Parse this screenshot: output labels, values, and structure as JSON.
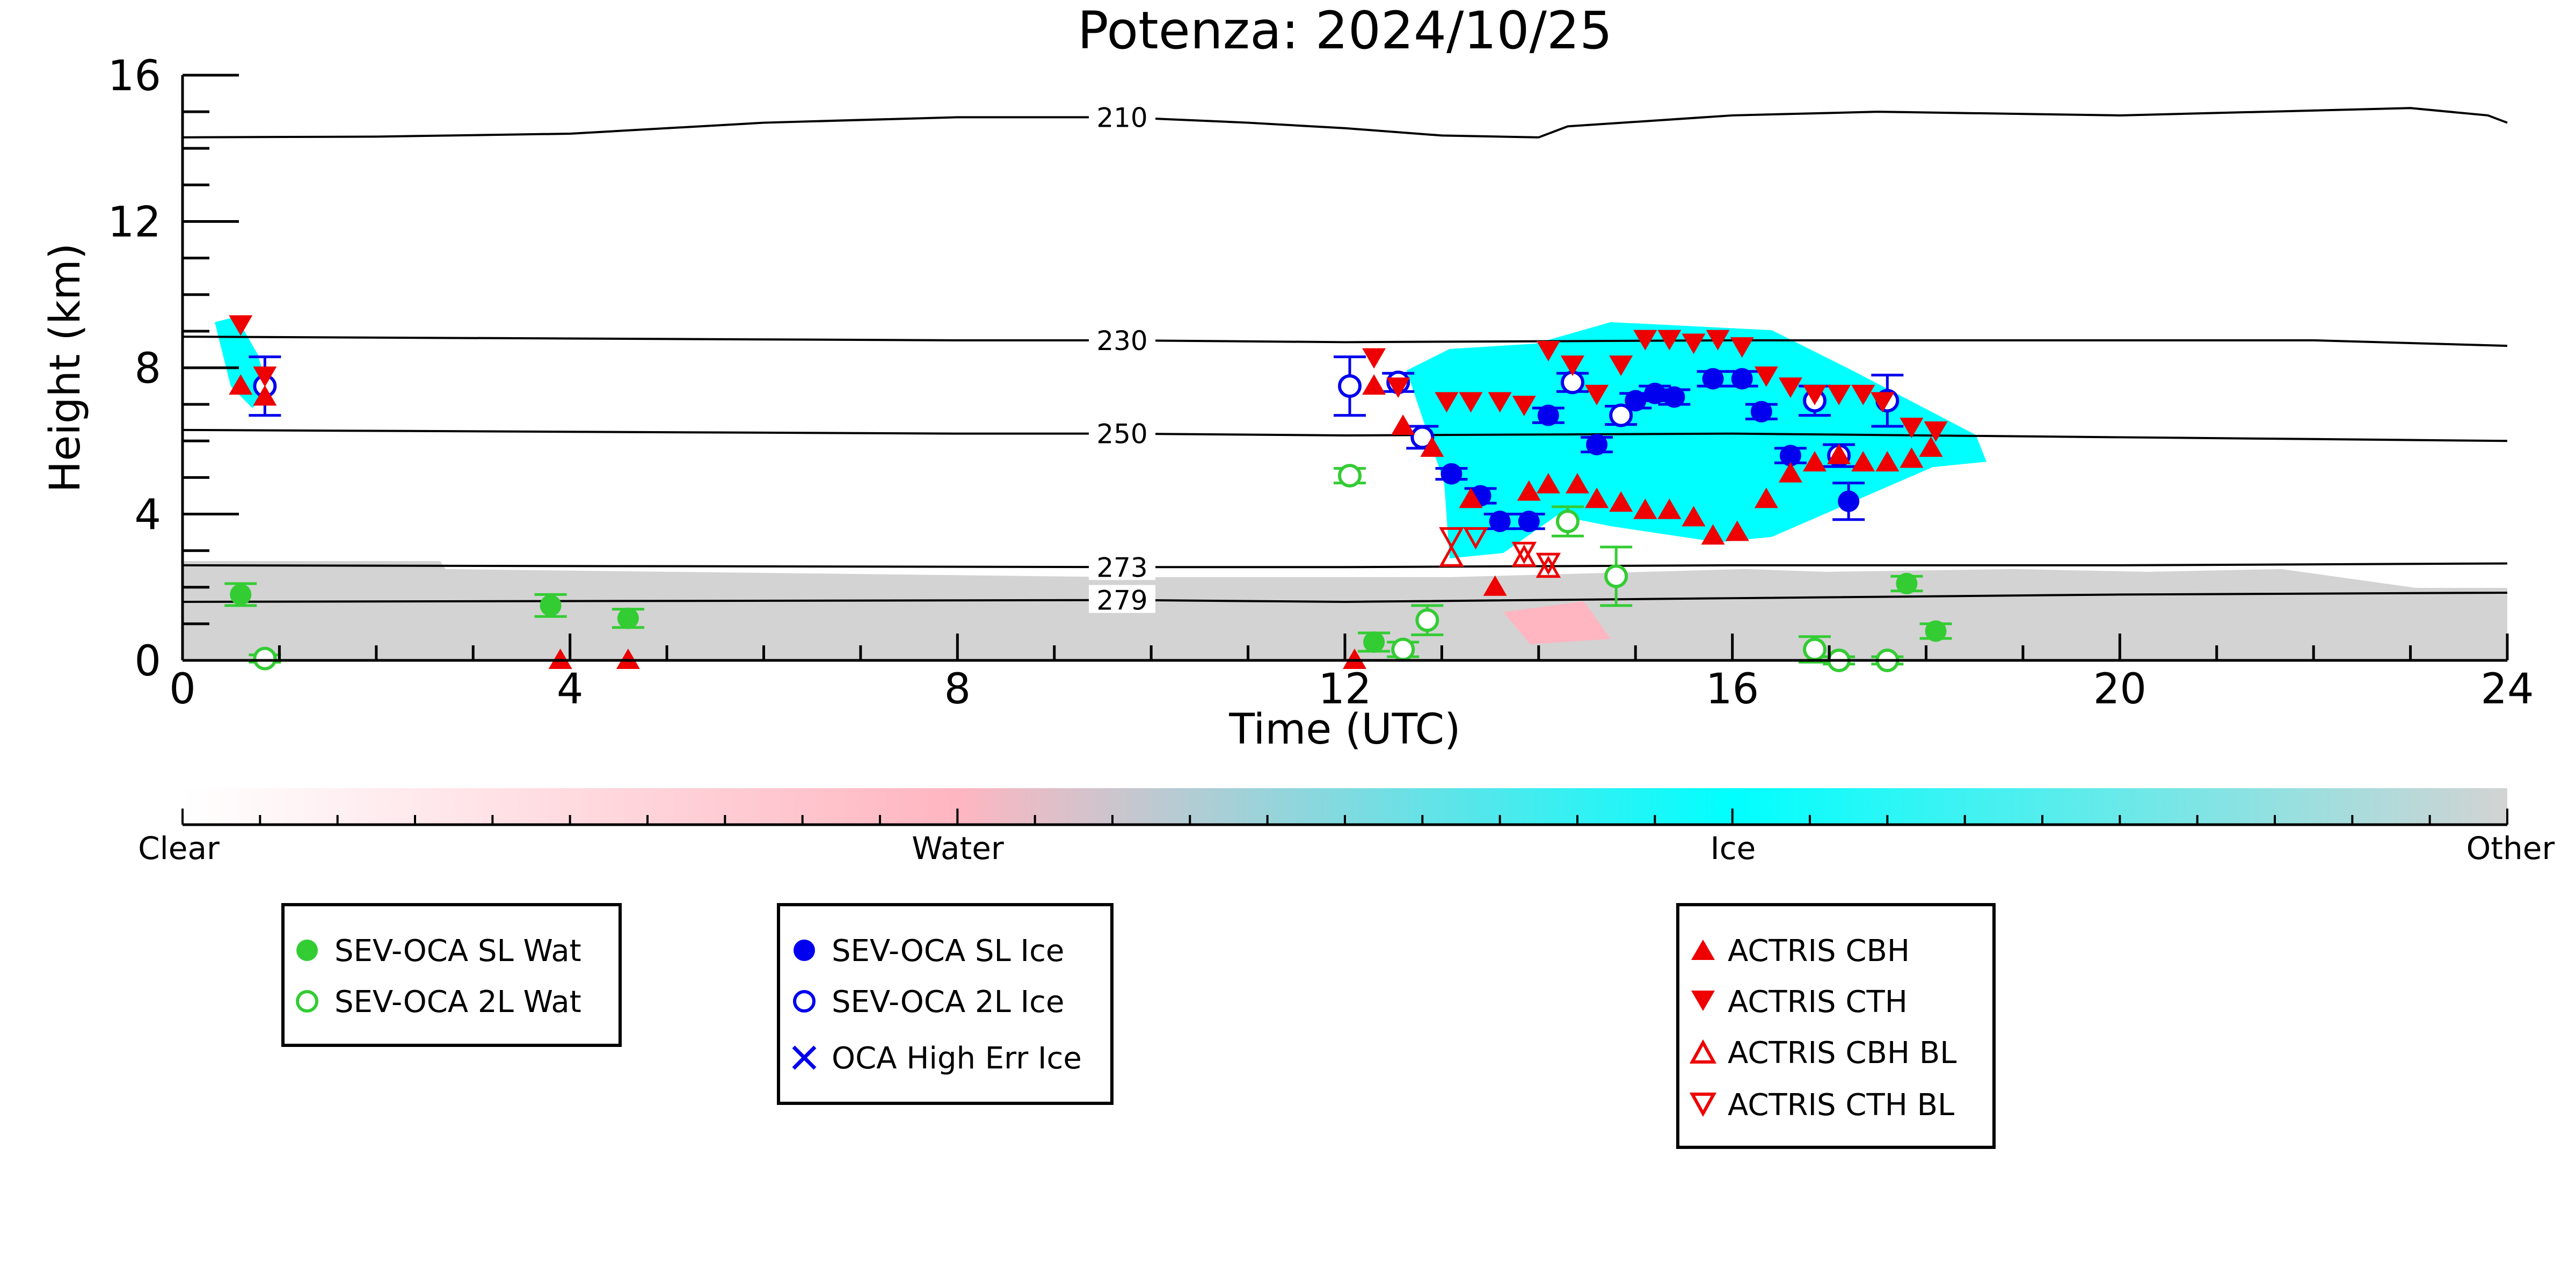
{
  "chart_data": {
    "type": "scatter",
    "title": "Potenza: 2024/10/25",
    "xlabel": "Time (UTC)",
    "ylabel": "Height (km)",
    "xlim": [
      0,
      24
    ],
    "ylim": [
      0,
      16
    ],
    "x_ticks": [
      0,
      4,
      8,
      12,
      16,
      20,
      24
    ],
    "y_ticks": [
      0,
      4,
      8,
      12,
      16
    ],
    "x_tick_labels": [
      "0",
      "4",
      "8",
      "12",
      "16",
      "20",
      "24"
    ],
    "y_tick_labels": [
      "0",
      "4",
      "8",
      "12",
      "16"
    ],
    "colorbar": {
      "labels": [
        "Clear",
        "Water",
        "Ice",
        "Other"
      ],
      "colors": [
        "#ffffff",
        "#ffb6c1",
        "#00ffff",
        "#d3d3d3"
      ]
    },
    "isotherms": [
      {
        "label": "210",
        "label_x": 9.7,
        "points": [
          [
            0,
            14.3
          ],
          [
            2,
            14.32
          ],
          [
            4,
            14.4
          ],
          [
            6,
            14.7
          ],
          [
            8,
            14.85
          ],
          [
            9.7,
            14.85
          ],
          [
            11,
            14.7
          ],
          [
            12,
            14.55
          ],
          [
            13,
            14.35
          ],
          [
            14,
            14.3
          ],
          [
            14.3,
            14.6
          ],
          [
            16,
            14.9
          ],
          [
            17.5,
            15.0
          ],
          [
            20,
            14.9
          ],
          [
            23,
            15.1
          ],
          [
            23.8,
            14.9
          ],
          [
            24,
            14.7
          ]
        ]
      },
      {
        "label": "230",
        "label_x": 9.7,
        "points": [
          [
            0,
            8.85
          ],
          [
            4,
            8.8
          ],
          [
            8,
            8.75
          ],
          [
            9.7,
            8.75
          ],
          [
            12,
            8.7
          ],
          [
            16,
            8.75
          ],
          [
            20,
            8.75
          ],
          [
            22,
            8.75
          ],
          [
            24,
            8.6
          ]
        ]
      },
      {
        "label": "250",
        "label_x": 9.7,
        "points": [
          [
            0,
            6.3
          ],
          [
            4,
            6.25
          ],
          [
            8,
            6.2
          ],
          [
            9.7,
            6.2
          ],
          [
            12,
            6.15
          ],
          [
            16,
            6.2
          ],
          [
            20,
            6.1
          ],
          [
            24,
            6.0
          ]
        ]
      },
      {
        "label": "273",
        "label_x": 9.7,
        "points": [
          [
            0,
            2.6
          ],
          [
            9.7,
            2.55
          ],
          [
            12,
            2.55
          ],
          [
            16,
            2.6
          ],
          [
            20,
            2.6
          ],
          [
            24,
            2.65
          ]
        ]
      },
      {
        "label": "279",
        "label_x": 9.7,
        "points": [
          [
            0,
            1.6
          ],
          [
            9.7,
            1.65
          ],
          [
            12,
            1.6
          ],
          [
            16,
            1.7
          ],
          [
            20,
            1.8
          ],
          [
            24,
            1.85
          ]
        ]
      }
    ],
    "series": [
      {
        "name": "SEV-OCA SL Wat",
        "marker": "filled-circle",
        "color": "#33cc33",
        "points": [
          {
            "x": 0.6,
            "y": 1.8,
            "err": 0.3
          },
          {
            "x": 3.8,
            "y": 1.5,
            "err": 0.3
          },
          {
            "x": 4.6,
            "y": 1.15,
            "err": 0.25
          },
          {
            "x": 12.3,
            "y": 0.5,
            "err": 0.25
          },
          {
            "x": 17.8,
            "y": 2.1,
            "err": 0.2
          },
          {
            "x": 18.1,
            "y": 0.8,
            "err": 0.2
          }
        ]
      },
      {
        "name": "SEV-OCA 2L Wat",
        "marker": "open-circle",
        "color": "#33cc33",
        "points": [
          {
            "x": 0.85,
            "y": 0.05,
            "err": 0.1
          },
          {
            "x": 12.05,
            "y": 5.05,
            "err": 0.2
          },
          {
            "x": 12.6,
            "y": 0.3,
            "err": 0.2
          },
          {
            "x": 12.85,
            "y": 1.1,
            "err": 0.4
          },
          {
            "x": 14.3,
            "y": 3.8,
            "err": 0.4
          },
          {
            "x": 14.8,
            "y": 2.3,
            "err": 0.8
          },
          {
            "x": 16.85,
            "y": 0.3,
            "err": 0.35
          },
          {
            "x": 17.1,
            "y": 0.0,
            "err": 0.1
          },
          {
            "x": 17.6,
            "y": 0.0,
            "err": 0.1
          }
        ]
      },
      {
        "name": "SEV-OCA SL Ice",
        "marker": "filled-circle",
        "color": "#0000ee",
        "points": [
          {
            "x": 13.1,
            "y": 5.1,
            "err": 0.15
          },
          {
            "x": 13.4,
            "y": 4.5,
            "err": 0.2
          },
          {
            "x": 13.6,
            "y": 3.8,
            "err": 0.2
          },
          {
            "x": 13.9,
            "y": 3.8,
            "err": 0.2
          },
          {
            "x": 14.1,
            "y": 6.7,
            "err": 0.2
          },
          {
            "x": 14.6,
            "y": 5.9,
            "err": 0.2
          },
          {
            "x": 15.0,
            "y": 7.1,
            "err": 0.2
          },
          {
            "x": 15.2,
            "y": 7.3,
            "err": 0.2
          },
          {
            "x": 15.4,
            "y": 7.2,
            "err": 0.2
          },
          {
            "x": 15.8,
            "y": 7.7,
            "err": 0.2
          },
          {
            "x": 16.1,
            "y": 7.7,
            "err": 0.2
          },
          {
            "x": 16.3,
            "y": 6.8,
            "err": 0.2
          },
          {
            "x": 16.6,
            "y": 5.6,
            "err": 0.2
          },
          {
            "x": 17.2,
            "y": 4.35,
            "err": 0.5
          }
        ]
      },
      {
        "name": "SEV-OCA 2L Ice",
        "marker": "open-circle",
        "color": "#0000ee",
        "points": [
          {
            "x": 0.85,
            "y": 7.5,
            "err": 0.8
          },
          {
            "x": 12.05,
            "y": 7.5,
            "err": 0.8
          },
          {
            "x": 12.55,
            "y": 7.6,
            "err": 0.25
          },
          {
            "x": 12.8,
            "y": 6.1,
            "err": 0.3
          },
          {
            "x": 14.35,
            "y": 7.6,
            "err": 0.25
          },
          {
            "x": 14.85,
            "y": 6.7,
            "err": 0.25
          },
          {
            "x": 16.85,
            "y": 7.1,
            "err": 0.4
          },
          {
            "x": 17.1,
            "y": 5.6,
            "err": 0.3
          },
          {
            "x": 17.6,
            "y": 7.1,
            "err": 0.7
          }
        ]
      },
      {
        "name": "OCA High Err Ice",
        "marker": "x",
        "color": "#0000ee",
        "points": []
      },
      {
        "name": "ACTRIS CBH",
        "marker": "filled-triangle-up",
        "color": "#ee0000",
        "points": [
          {
            "x": 0.6,
            "y": 7.5
          },
          {
            "x": 0.85,
            "y": 7.2
          },
          {
            "x": 3.9,
            "y": 0.0
          },
          {
            "x": 4.6,
            "y": 0.0
          },
          {
            "x": 12.1,
            "y": 0.0
          },
          {
            "x": 12.3,
            "y": 7.5
          },
          {
            "x": 12.6,
            "y": 6.4
          },
          {
            "x": 12.9,
            "y": 5.8
          },
          {
            "x": 13.3,
            "y": 4.4
          },
          {
            "x": 13.55,
            "y": 2.0
          },
          {
            "x": 13.9,
            "y": 4.6
          },
          {
            "x": 14.1,
            "y": 4.8
          },
          {
            "x": 14.4,
            "y": 4.8
          },
          {
            "x": 14.6,
            "y": 4.4
          },
          {
            "x": 14.85,
            "y": 4.3
          },
          {
            "x": 15.1,
            "y": 4.1
          },
          {
            "x": 15.35,
            "y": 4.1
          },
          {
            "x": 15.6,
            "y": 3.9
          },
          {
            "x": 15.8,
            "y": 3.4
          },
          {
            "x": 16.05,
            "y": 3.5
          },
          {
            "x": 16.35,
            "y": 4.4
          },
          {
            "x": 16.6,
            "y": 5.1
          },
          {
            "x": 16.85,
            "y": 5.4
          },
          {
            "x": 17.1,
            "y": 5.6
          },
          {
            "x": 17.35,
            "y": 5.4
          },
          {
            "x": 17.6,
            "y": 5.4
          },
          {
            "x": 17.85,
            "y": 5.5
          },
          {
            "x": 18.05,
            "y": 5.8
          }
        ]
      },
      {
        "name": "ACTRIS CTH",
        "marker": "filled-triangle-down",
        "color": "#ee0000",
        "points": [
          {
            "x": 0.6,
            "y": 9.2
          },
          {
            "x": 0.85,
            "y": 7.8
          },
          {
            "x": 12.3,
            "y": 8.3
          },
          {
            "x": 12.55,
            "y": 7.5
          },
          {
            "x": 13.05,
            "y": 7.1
          },
          {
            "x": 13.3,
            "y": 7.1
          },
          {
            "x": 13.6,
            "y": 7.1
          },
          {
            "x": 13.85,
            "y": 7.0
          },
          {
            "x": 14.1,
            "y": 8.5
          },
          {
            "x": 14.35,
            "y": 8.1
          },
          {
            "x": 14.6,
            "y": 7.3
          },
          {
            "x": 14.85,
            "y": 8.1
          },
          {
            "x": 15.1,
            "y": 8.8
          },
          {
            "x": 15.35,
            "y": 8.8
          },
          {
            "x": 15.6,
            "y": 8.7
          },
          {
            "x": 15.85,
            "y": 8.8
          },
          {
            "x": 16.1,
            "y": 8.6
          },
          {
            "x": 16.35,
            "y": 7.8
          },
          {
            "x": 16.6,
            "y": 7.5
          },
          {
            "x": 16.85,
            "y": 7.3
          },
          {
            "x": 17.1,
            "y": 7.3
          },
          {
            "x": 17.35,
            "y": 7.3
          },
          {
            "x": 17.55,
            "y": 7.1
          },
          {
            "x": 17.85,
            "y": 6.4
          },
          {
            "x": 18.1,
            "y": 6.3
          }
        ]
      },
      {
        "name": "ACTRIS CBH BL",
        "marker": "open-triangle-up",
        "color": "#ee0000",
        "points": [
          {
            "x": 13.1,
            "y": 2.8
          },
          {
            "x": 13.85,
            "y": 2.8
          },
          {
            "x": 14.1,
            "y": 2.5
          }
        ]
      },
      {
        "name": "ACTRIS CTH BL",
        "marker": "open-triangle-down",
        "color": "#ee0000",
        "points": [
          {
            "x": 13.1,
            "y": 3.4
          },
          {
            "x": 13.35,
            "y": 3.4
          },
          {
            "x": 13.85,
            "y": 3.0
          },
          {
            "x": 14.1,
            "y": 2.7
          }
        ]
      }
    ]
  },
  "legends": [
    {
      "items": [
        {
          "label": "SEV-OCA SL Wat"
        },
        {
          "label": "SEV-OCA 2L Wat"
        }
      ]
    },
    {
      "items": [
        {
          "label": "SEV-OCA SL Ice"
        },
        {
          "label": "SEV-OCA 2L Ice"
        },
        {
          "label": "OCA High Err Ice"
        }
      ]
    },
    {
      "items": [
        {
          "label": "ACTRIS CBH"
        },
        {
          "label": "ACTRIS CTH"
        },
        {
          "label": "ACTRIS CBH BL"
        },
        {
          "label": "ACTRIS CTH BL"
        }
      ]
    }
  ]
}
